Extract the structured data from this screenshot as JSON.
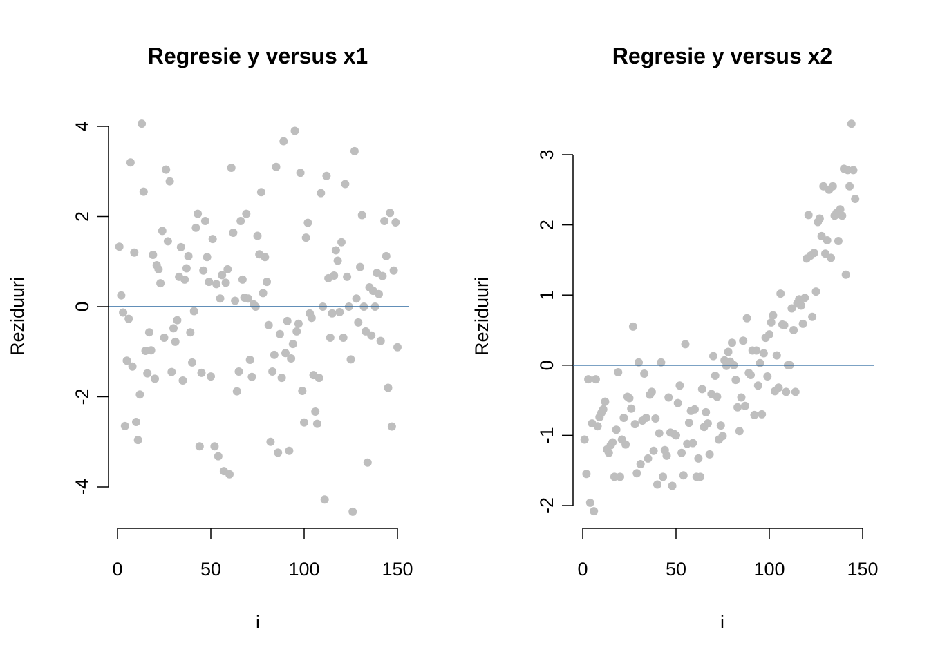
{
  "chart_data": [
    {
      "type": "scatter",
      "title": "Regresie y versus x1",
      "xlabel": "i",
      "ylabel": "Reziduuri",
      "xticks": [
        "0",
        "50",
        "100",
        "150"
      ],
      "yticks": [
        "-4",
        "-2",
        "0",
        "2",
        "4"
      ],
      "xlim": [
        0,
        150
      ],
      "ylim": [
        -4,
        4
      ],
      "hline": 0,
      "point_color": "#bebebe",
      "line_color": "#2f6aa0",
      "y": [
        1.33,
        0.25,
        -0.13,
        -2.65,
        -1.2,
        -0.27,
        3.2,
        -1.33,
        1.2,
        -2.56,
        -2.96,
        -1.95,
        4.06,
        2.55,
        -0.98,
        -1.48,
        -0.57,
        -0.97,
        1.15,
        -1.6,
        0.92,
        0.83,
        0.52,
        1.68,
        -0.69,
        3.04,
        1.45,
        2.78,
        -1.45,
        -0.48,
        -0.78,
        -0.3,
        0.66,
        1.32,
        -1.64,
        0.6,
        0.85,
        1.12,
        -0.57,
        -1.24,
        -0.1,
        1.75,
        2.06,
        -3.1,
        -1.47,
        0.8,
        1.9,
        1.1,
        0.55,
        -1.55,
        1.5,
        -3.1,
        0.5,
        -3.32,
        0.18,
        0.7,
        -3.65,
        0.53,
        0.83,
        -3.72,
        3.08,
        1.64,
        0.13,
        -1.88,
        -1.44,
        1.9,
        0.6,
        0.2,
        2.06,
        0.18,
        -1.18,
        -1.56,
        0.05,
        0.0,
        1.57,
        1.16,
        2.54,
        0.3,
        1.1,
        0.55,
        -0.41,
        -3.0,
        -1.44,
        -1.07,
        3.1,
        -3.24,
        -0.61,
        -1.58,
        3.67,
        -1.03,
        -0.32,
        -3.2,
        -1.15,
        -0.83,
        3.9,
        -0.55,
        -0.38,
        2.97,
        -1.87,
        -2.57,
        1.53,
        1.86,
        -0.15,
        -0.25,
        -1.52,
        -2.33,
        -2.6,
        -1.58,
        2.52,
        0.0,
        -4.28,
        2.9,
        0.63,
        -0.69,
        -0.15,
        0.69,
        1.25,
        1.02,
        -0.12,
        1.43,
        -0.69,
        2.72,
        0.66,
        0.0,
        -1.17,
        -4.55,
        3.45,
        0.18,
        -0.35,
        0.88,
        2.03,
        0.0,
        -0.55,
        -3.46,
        0.43,
        -0.64,
        0.35,
        0.0,
        0.75,
        0.28,
        -0.76,
        0.68,
        1.9,
        1.12,
        -1.8,
        2.08,
        -2.66,
        0.8,
        1.87,
        -0.9
      ]
    },
    {
      "type": "scatter",
      "title": "Regresie y versus x2",
      "xlabel": "i",
      "ylabel": "Reziduuri",
      "xticks": [
        "0",
        "50",
        "100",
        "150"
      ],
      "yticks": [
        "-2",
        "-1",
        "0",
        "1",
        "2",
        "3"
      ],
      "xlim": [
        0,
        150
      ],
      "ylim": [
        -2,
        3
      ],
      "hline": 0,
      "point_color": "#bebebe",
      "line_color": "#2f6aa0",
      "y": [
        -1.06,
        -1.55,
        -0.2,
        -1.96,
        -0.83,
        -2.08,
        -0.2,
        -0.87,
        -0.74,
        -0.68,
        -0.63,
        -0.52,
        -1.2,
        -1.25,
        -1.14,
        -1.1,
        -1.59,
        -0.92,
        -0.1,
        -1.59,
        -1.06,
        -0.75,
        -1.13,
        -0.45,
        -0.47,
        -0.62,
        0.55,
        -0.84,
        -1.54,
        0.04,
        -1.41,
        -0.79,
        -0.12,
        -0.75,
        -1.33,
        -0.42,
        -0.38,
        -1.22,
        -0.76,
        -1.7,
        -0.97,
        0.04,
        -1.59,
        -1.21,
        -1.29,
        -0.46,
        -0.96,
        -1.72,
        -0.98,
        -1.0,
        -0.54,
        -0.29,
        -1.25,
        -1.57,
        0.3,
        -1.12,
        -0.82,
        -0.65,
        -1.11,
        -0.63,
        -1.59,
        -1.33,
        -1.59,
        -0.34,
        -0.88,
        -0.67,
        -0.83,
        -1.27,
        -0.41,
        0.13,
        -0.15,
        -0.45,
        -1.06,
        -0.86,
        -1.01,
        0.07,
        -0.01,
        0.19,
        0.05,
        0.32,
        0.0,
        -0.21,
        -0.6,
        -0.94,
        -0.46,
        0.35,
        -0.58,
        0.67,
        -0.11,
        -0.14,
        0.21,
        -0.71,
        0.21,
        -0.29,
        0.03,
        -0.7,
        0.17,
        0.39,
        -0.16,
        0.44,
        0.61,
        0.71,
        -0.37,
        0.14,
        -0.32,
        1.02,
        0.58,
        0.57,
        -0.38,
        0.0,
        0.0,
        0.81,
        0.5,
        -0.38,
        0.88,
        0.94,
        0.85,
        0.59,
        0.96,
        1.52,
        2.14,
        1.56,
        0.69,
        1.6,
        1.05,
        2.04,
        2.09,
        1.84,
        2.55,
        1.59,
        1.78,
        2.5,
        1.53,
        2.55,
        2.13,
        2.17,
        1.77,
        2.22,
        2.13,
        2.8,
        1.29,
        2.78,
        2.55,
        3.44,
        2.78,
        2.37
      ]
    }
  ]
}
